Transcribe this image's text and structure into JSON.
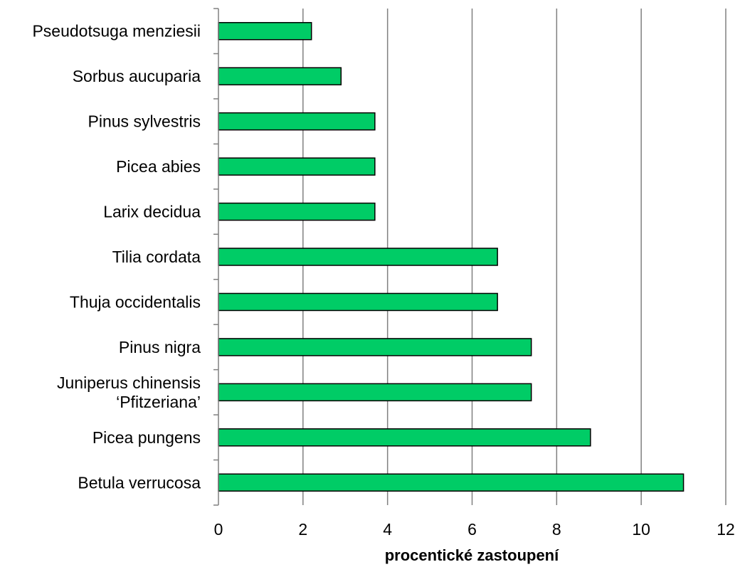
{
  "chart_data": {
    "type": "bar",
    "orientation": "horizontal",
    "title": "",
    "xlabel": "procentické zastoupení",
    "ylabel": "",
    "categories": [
      [
        "Pseudotsuga menziesii"
      ],
      [
        "Sorbus aucuparia"
      ],
      [
        "Pinus sylvestris"
      ],
      [
        "Picea abies"
      ],
      [
        "Larix decidua"
      ],
      [
        "Tilia cordata"
      ],
      [
        "Thuja occidentalis"
      ],
      [
        "Pinus nigra"
      ],
      [
        "Juniperus chinensis",
        "‘Pfitzeriana’"
      ],
      [
        "Picea pungens"
      ],
      [
        "Betula verrucosa"
      ]
    ],
    "values": [
      2.2,
      2.9,
      3.7,
      3.7,
      3.7,
      6.6,
      6.6,
      7.4,
      7.4,
      8.8,
      11.0
    ],
    "xlim": [
      0,
      12
    ],
    "xticks": [
      "0",
      "2",
      "4",
      "6",
      "8",
      "10",
      "12"
    ],
    "grid": "vertical",
    "legend": "none",
    "bar_color": "#00cc66",
    "bar_edge_color": "#000000",
    "grid_color": "#808080"
  }
}
